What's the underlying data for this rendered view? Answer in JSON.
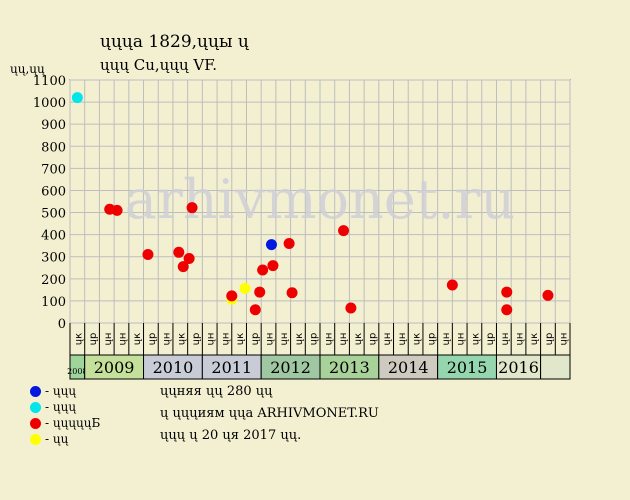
{
  "title_line1": "ųųųа 1829,ųųы ų",
  "title_line2": "ųųų Cu,ųųų VF.",
  "y_unit": "ųų,ųų",
  "watermark": "arhivmonet.ru",
  "colors": {
    "background": "#f3f0d2",
    "plot_background": "#f3f0d2",
    "grid": "#bdbdbd"
  },
  "legend": [
    {
      "label": "- ųųų",
      "color": "#0018e0"
    },
    {
      "label": "- ųųų",
      "color": "#00e6ea"
    },
    {
      "label": "- ųųųųųБ",
      "color": "#ee0000"
    },
    {
      "label": "- ųų",
      "color": "#ffff00"
    }
  ],
  "notes": [
    "ųųняя ųų 280 ųų",
    "ų ųųųиям ųųа ARHIVMONET.RU",
    "ųųų ų 20 ųя 2017 ųų."
  ],
  "chart_data": {
    "type": "scatter",
    "ylim": [
      0,
      1100
    ],
    "yticks": [
      0,
      100,
      200,
      300,
      400,
      500,
      600,
      700,
      800,
      900,
      1000,
      1100
    ],
    "grid": true,
    "legend_position": "bottom-left",
    "quarter_labels": [
      "ųк",
      "ųр",
      "ųн",
      "ųн",
      "ųк",
      "ųр",
      "ųн",
      "ųк",
      "ųр",
      "ųн",
      "ųн",
      "ųк",
      "ųр",
      "ųн",
      "ųн",
      "ųк",
      "ųр",
      "ųн",
      "ųн",
      "ųк",
      "ųр",
      "ųн",
      "ųн",
      "ųк",
      "ųр",
      "ųн",
      "ųн",
      "ųк",
      "ųр",
      "ųн",
      "ųн",
      "ųк",
      "ųр",
      "ųн"
    ],
    "years": [
      {
        "label": "2008",
        "start": 0,
        "span": 1,
        "color": "#9fd49a"
      },
      {
        "label": "2009",
        "start": 1,
        "span": 4,
        "color": "#c5e09a"
      },
      {
        "label": "2010",
        "start": 5,
        "span": 4,
        "color": "#c8ccd6"
      },
      {
        "label": "2011",
        "start": 9,
        "span": 4,
        "color": "#c8ccd6"
      },
      {
        "label": "2012",
        "start": 13,
        "span": 4,
        "color": "#9fc7a2"
      },
      {
        "label": "2013",
        "start": 17,
        "span": 4,
        "color": "#a9d29a"
      },
      {
        "label": "2014",
        "start": 21,
        "span": 4,
        "color": "#cfcac0"
      },
      {
        "label": "2015",
        "start": 25,
        "span": 4,
        "color": "#95d6ae"
      },
      {
        "label": "2016",
        "start": 29,
        "span": 3,
        "color": "#e0e7ca"
      }
    ],
    "series": [
      {
        "color": "#00e6ea",
        "points": [
          {
            "x": 0.0,
            "y": 1020
          }
        ]
      },
      {
        "color": "#0018e0",
        "points": [
          {
            "x": 13.2,
            "y": 355
          }
        ]
      },
      {
        "color": "#ffff00",
        "points": [
          {
            "x": 10.5,
            "y": 108
          },
          {
            "x": 11.4,
            "y": 157
          }
        ]
      },
      {
        "color": "#ee0000",
        "points": [
          {
            "x": 2.2,
            "y": 515
          },
          {
            "x": 2.7,
            "y": 510
          },
          {
            "x": 4.8,
            "y": 310
          },
          {
            "x": 6.9,
            "y": 320
          },
          {
            "x": 7.2,
            "y": 255
          },
          {
            "x": 7.6,
            "y": 292
          },
          {
            "x": 7.8,
            "y": 522
          },
          {
            "x": 10.5,
            "y": 123
          },
          {
            "x": 12.1,
            "y": 60
          },
          {
            "x": 12.4,
            "y": 140
          },
          {
            "x": 12.6,
            "y": 240
          },
          {
            "x": 13.3,
            "y": 260
          },
          {
            "x": 14.4,
            "y": 360
          },
          {
            "x": 14.6,
            "y": 137
          },
          {
            "x": 18.1,
            "y": 418
          },
          {
            "x": 18.6,
            "y": 68
          },
          {
            "x": 25.5,
            "y": 172
          },
          {
            "x": 29.2,
            "y": 140
          },
          {
            "x": 29.2,
            "y": 60
          },
          {
            "x": 32.0,
            "y": 125
          }
        ]
      }
    ]
  }
}
